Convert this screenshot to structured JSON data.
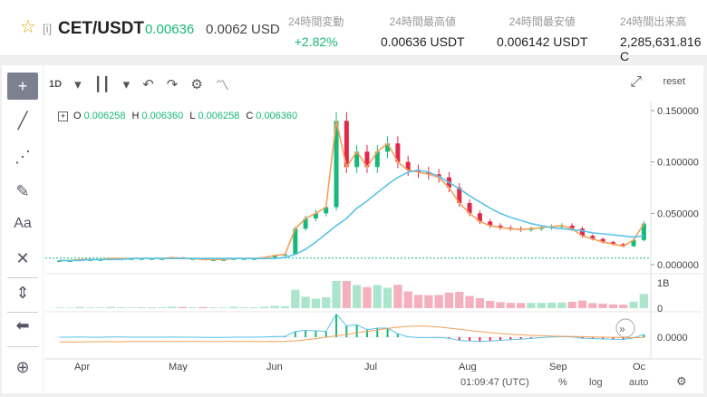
{
  "header": {
    "star": "☆",
    "mark": "[i]",
    "pair": "CET/USDT",
    "price": "0.00636",
    "usd": "0.0062 USD",
    "stats": [
      {
        "label": "24時間変動",
        "value": "+2.82%"
      },
      {
        "label": "24時間最高値",
        "value": "0.00636 USDT"
      },
      {
        "label": "24時間最安値",
        "value": "0.006142 USDT"
      },
      {
        "label": "24時間出来高",
        "value": "2,285,631.816 C"
      }
    ]
  },
  "toolbar": {
    "interval": "1D",
    "reset": "reset"
  },
  "ohlc": {
    "o_label": "O",
    "o": "0.006258",
    "h_label": "H",
    "h": "0.006360",
    "l_label": "L",
    "l": "0.006258",
    "c_label": "C",
    "c": "0.006360"
  },
  "chart_data": {
    "type": "line",
    "price_ticks": [
      "0.150000",
      "0.100000",
      "0.050000",
      "0.000000"
    ],
    "volume_ticks": [
      "1B",
      "0"
    ],
    "macd_ticks": [
      "0.0000"
    ],
    "x_labels": [
      "Apr",
      "May",
      "Jun",
      "Jul",
      "Aug",
      "Sep",
      "Oc"
    ],
    "series": [
      {
        "values": [
          0.004,
          0.004,
          0.005,
          0.005,
          0.005,
          0.006,
          0.006,
          0.006,
          0.006,
          0.006,
          0.006,
          0.007,
          0.006,
          0.006,
          0.005,
          0.005,
          0.005,
          0.006,
          0.006,
          0.006,
          0.007,
          0.009,
          0.01,
          0.035,
          0.045,
          0.05,
          0.056,
          0.14,
          0.095,
          0.11,
          0.095,
          0.11,
          0.118,
          0.1,
          0.092,
          0.09,
          0.088,
          0.085,
          0.075,
          0.06,
          0.05,
          0.042,
          0.038,
          0.036,
          0.035,
          0.034,
          0.035,
          0.036,
          0.037,
          0.038,
          0.035,
          0.028,
          0.025,
          0.022,
          0.02,
          0.018,
          0.024,
          0.04
        ]
      },
      {
        "values": [
          0.004,
          0.004,
          0.004,
          0.005,
          0.005,
          0.005,
          0.005,
          0.006,
          0.006,
          0.006,
          0.006,
          0.006,
          0.006,
          0.006,
          0.006,
          0.006,
          0.006,
          0.006,
          0.006,
          0.006,
          0.006,
          0.006,
          0.007,
          0.01,
          0.015,
          0.022,
          0.03,
          0.038,
          0.045,
          0.055,
          0.062,
          0.07,
          0.078,
          0.085,
          0.09,
          0.092,
          0.09,
          0.086,
          0.08,
          0.074,
          0.067,
          0.061,
          0.055,
          0.05,
          0.046,
          0.043,
          0.04,
          0.038,
          0.036,
          0.035,
          0.034,
          0.033,
          0.031,
          0.03,
          0.029,
          0.028,
          0.027,
          0.028
        ]
      }
    ]
  },
  "bottom": {
    "time": "01:09:47 (UTC)",
    "pct": "%",
    "log": "log",
    "auto": "auto"
  }
}
